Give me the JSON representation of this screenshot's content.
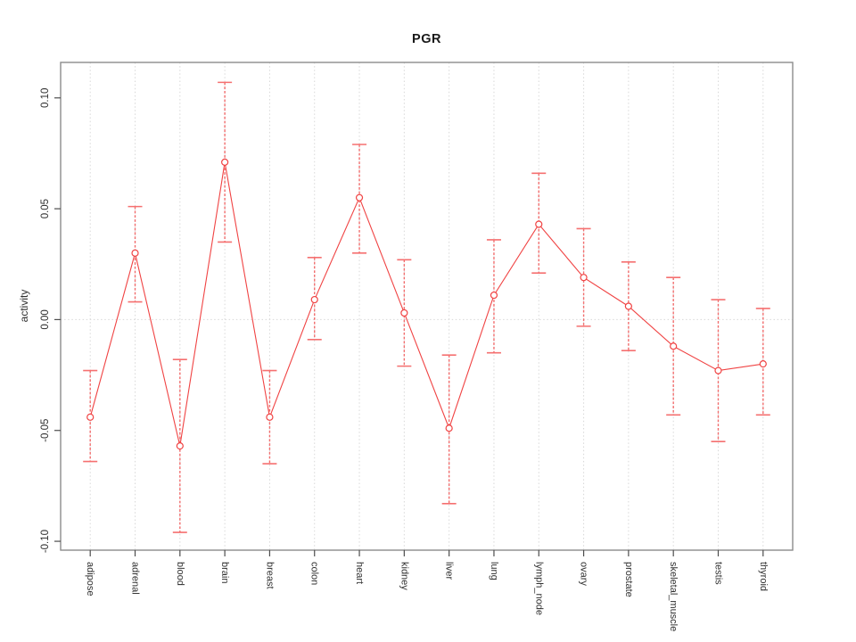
{
  "title": "PGR",
  "chart_data": {
    "type": "line",
    "title": "PGR",
    "xlabel": "",
    "ylabel": "activity",
    "categories": [
      "adipose",
      "adrenal",
      "blood",
      "brain",
      "breast",
      "colon",
      "heart",
      "kidney",
      "liver",
      "lung",
      "lymph_node",
      "ovary",
      "prostate",
      "skeletal_muscle",
      "testis",
      "thyroid"
    ],
    "series": [
      {
        "name": "activity",
        "values": [
          -0.044,
          0.03,
          -0.057,
          0.071,
          -0.044,
          0.009,
          0.055,
          0.003,
          -0.049,
          0.011,
          0.043,
          0.019,
          0.006,
          -0.012,
          -0.023,
          -0.02
        ],
        "ci_upper": [
          -0.023,
          0.051,
          -0.018,
          0.107,
          -0.023,
          0.028,
          0.079,
          0.027,
          -0.016,
          0.036,
          0.066,
          0.041,
          0.026,
          0.019,
          0.009,
          0.005
        ],
        "ci_lower": [
          -0.064,
          0.008,
          -0.096,
          0.035,
          -0.065,
          -0.009,
          0.03,
          -0.021,
          -0.083,
          -0.015,
          0.021,
          -0.003,
          -0.014,
          -0.043,
          -0.055,
          -0.043
        ]
      }
    ],
    "yticks": [
      -0.1,
      -0.05,
      0.0,
      0.05,
      0.1
    ],
    "ytick_labels": [
      "-0.10",
      "-0.05",
      "0.00",
      "0.05",
      "0.10"
    ],
    "ylim": [
      -0.104,
      0.116
    ],
    "legend": "none",
    "grid": {
      "vertical_per_category": true,
      "horizontal_zero_line": true,
      "style": "dotted",
      "color": "#d8d8d8"
    },
    "marker": "open-circle",
    "errorbar_style": "dashed-with-caps",
    "colors": {
      "line": "#f04343",
      "marker": "#f04343",
      "errorbar": "#f26060",
      "errorbar_cap": "#f57070",
      "box": "#8c8c8c",
      "tick": "#4d4d4d",
      "text": "#303030",
      "grid": "#d8d8d8",
      "background": "#ffffff"
    }
  }
}
